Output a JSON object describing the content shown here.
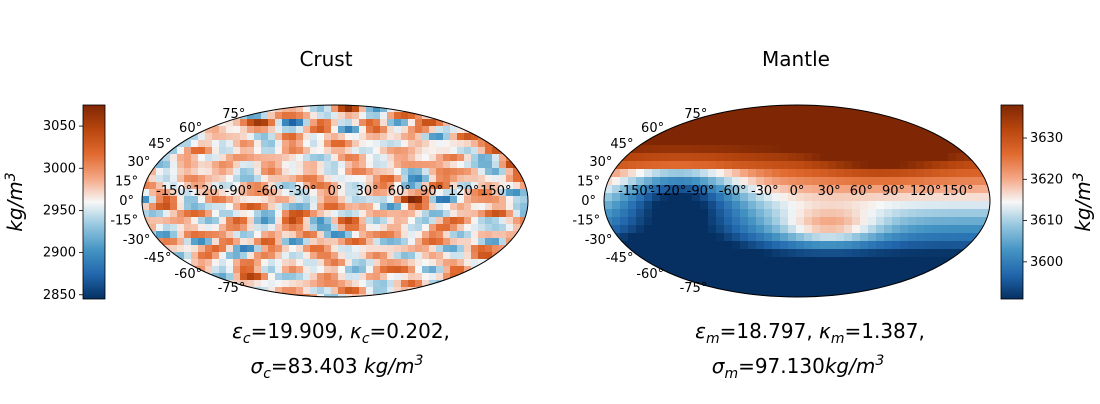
{
  "chart_data": [
    {
      "type": "heatmap",
      "projection": "mollweide",
      "title": "Crust",
      "lat_ticks": [
        "75°",
        "60°",
        "45°",
        "30°",
        "15°",
        "0°",
        "-15°",
        "-30°",
        "-45°",
        "-60°",
        "-75°"
      ],
      "lon_ticks": [
        "-150°",
        "-120°",
        "-90°",
        "-60°",
        "-30°",
        "0°",
        "30°",
        "60°",
        "90°",
        "120°",
        "150°"
      ],
      "colorbar": {
        "position": "left",
        "label": "kg/m3",
        "range": [
          2845,
          3075
        ],
        "ticks": [
          2850,
          2900,
          2950,
          3000,
          3050
        ],
        "tick_labels": [
          "2850",
          "2900",
          "2950",
          "3000",
          "3050"
        ],
        "colormap": [
          "#053061",
          "#2166ac",
          "#4393c3",
          "#92c5de",
          "#f7f7f7",
          "#f4a582",
          "#e0692e",
          "#b8460e",
          "#7f2704"
        ]
      },
      "field": "random small-scale anomalies",
      "caption_line1": {
        "eps_sym": "ε",
        "eps_sub": "c",
        "eps_val": "=19.909, ",
        "kap_sym": "κ",
        "kap_sub": "c",
        "kap_val": "=0.202,"
      },
      "caption_line2": {
        "sig_sym": "σ",
        "sig_sub": "c",
        "sig_val": "=83.403 ",
        "unit_base": "kg/m",
        "unit_exp": "3"
      }
    },
    {
      "type": "heatmap",
      "projection": "mollweide",
      "title": "Mantle",
      "lat_ticks": [
        "75°",
        "60°",
        "45°",
        "30°",
        "15°",
        "0°",
        "-15°",
        "-30°",
        "-45°",
        "-60°",
        "-75°"
      ],
      "lon_ticks": [
        "-150°",
        "-120°",
        "-90°",
        "-60°",
        "-30°",
        "0°",
        "30°",
        "60°",
        "90°",
        "120°",
        "150°"
      ],
      "colorbar": {
        "position": "right",
        "label": "kg/m3",
        "range": [
          3591,
          3638
        ],
        "ticks": [
          3600,
          3610,
          3620,
          3630
        ],
        "tick_labels": [
          "3600",
          "3610",
          "3620",
          "3630"
        ],
        "colormap": [
          "#053061",
          "#2166ac",
          "#4393c3",
          "#92c5de",
          "#f7f7f7",
          "#f4a582",
          "#e0692e",
          "#b8460e",
          "#7f2704"
        ]
      },
      "field": "smooth large-scale: high in north, low in south",
      "caption_line1": {
        "eps_sym": "ε",
        "eps_sub": "m",
        "eps_val": "=18.797, ",
        "kap_sym": "κ",
        "kap_sub": "m",
        "kap_val": "=1.387,"
      },
      "caption_line2": {
        "sig_sym": "σ",
        "sig_sub": "m",
        "sig_val": "=97.130",
        "unit_base": "kg/m",
        "unit_exp": "3"
      }
    }
  ]
}
